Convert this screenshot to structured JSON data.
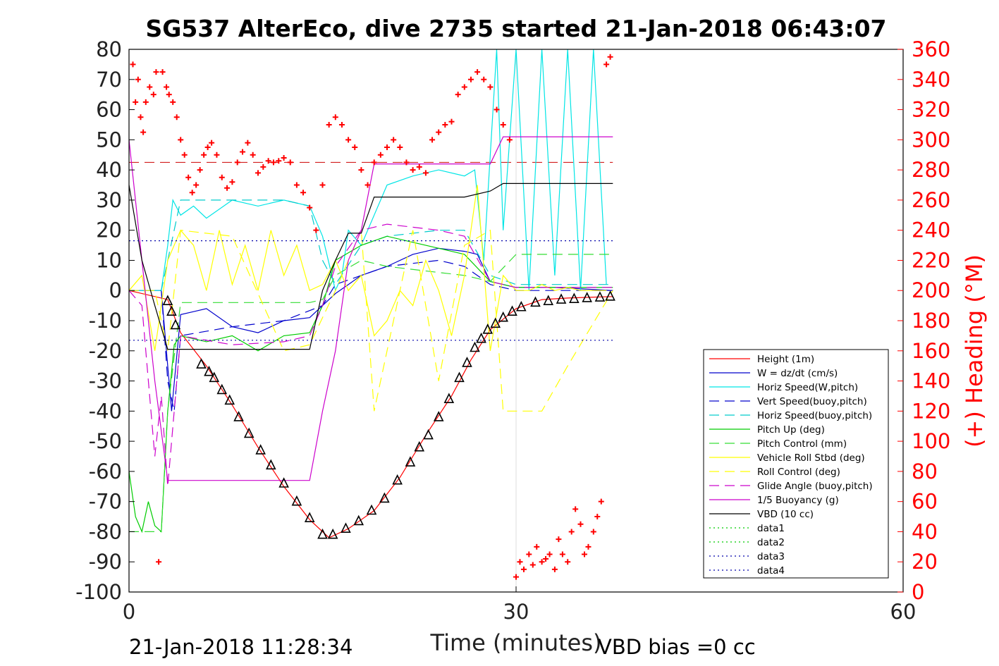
{
  "chart_data": {
    "type": "line",
    "title": "SG537 AlterEco, dive 2735 started 21-Jan-2018 06:43:07",
    "xlabel": "Time (minutes)",
    "ylabel_right": "(+) Heading (°M)",
    "xlim": [
      0,
      60
    ],
    "ylim": [
      -100,
      80
    ],
    "y2lim": [
      0,
      360
    ],
    "xticks": [
      "0",
      "30",
      "60"
    ],
    "yticks": [
      "80",
      "70",
      "60",
      "50",
      "40",
      "30",
      "20",
      "10",
      "0",
      "-10",
      "-20",
      "-30",
      "-40",
      "-50",
      "-60",
      "-70",
      "-80",
      "-90",
      "-100"
    ],
    "y2ticks": [
      "360",
      "340",
      "320",
      "300",
      "280",
      "260",
      "240",
      "220",
      "200",
      "180",
      "160",
      "140",
      "120",
      "100",
      "80",
      "60",
      "40",
      "20",
      "0"
    ],
    "footer_left": "21-Jan-2018 11:28:34",
    "footer_right": "VBD bias =0 cc",
    "grid": "x-only",
    "legend_position": "bottom-right",
    "series": [
      {
        "name": "Height (1m)",
        "color": "#ff0000",
        "style": "solid",
        "x": [
          0,
          3,
          4,
          6,
          8,
          10,
          12,
          14,
          15.5,
          17,
          19,
          21,
          23,
          25,
          26.5,
          28,
          30,
          32,
          34,
          36,
          37.5
        ],
        "y": [
          0,
          -3,
          -14,
          -25,
          -38,
          -52,
          -65,
          -76,
          -82,
          -79,
          -73,
          -62,
          -48,
          -35,
          -23,
          -13,
          -6,
          -3,
          -2.5,
          -2.2,
          -2
        ]
      },
      {
        "name": "W = dz/dt (cm/s)",
        "color": "#0000cc",
        "style": "solid",
        "x": [
          0,
          2.5,
          3,
          3.3,
          4,
          5,
          6,
          8,
          10,
          12,
          14,
          15,
          16,
          17,
          18,
          20,
          22,
          24,
          26,
          27,
          28,
          30,
          33,
          37.5
        ],
        "y": [
          0,
          0,
          -25,
          -40,
          -8,
          -7,
          -6,
          -12,
          -14,
          -10,
          -9,
          -5,
          -1,
          2,
          5,
          8,
          12,
          14,
          13,
          12,
          3,
          1,
          1,
          0
        ]
      },
      {
        "name": "Horiz Speed(W,pitch)",
        "color": "#00e5e5",
        "style": "solid",
        "x": [
          0,
          2.5,
          3,
          3.4,
          4,
          5,
          6,
          8,
          10,
          12,
          14,
          15,
          16,
          16.5,
          17,
          18,
          19,
          20,
          22,
          24,
          26,
          26.8,
          27.5,
          28.5,
          29,
          30,
          31,
          32,
          33,
          34,
          35,
          36,
          37
        ],
        "y": [
          0,
          0,
          15,
          30,
          25,
          28,
          24,
          30,
          28,
          30,
          28,
          18,
          0,
          5,
          20,
          15,
          25,
          35,
          38,
          40,
          38,
          40,
          10,
          80,
          20,
          80,
          0,
          80,
          5,
          80,
          0,
          80,
          2
        ]
      },
      {
        "name": "Vert Speed(buoy,pitch)",
        "color": "#0000cc",
        "style": "dashed",
        "x": [
          0,
          2.5,
          3,
          3.5,
          4,
          8,
          12,
          15,
          16,
          18,
          20,
          24,
          26,
          28,
          30,
          37.5
        ],
        "y": [
          0,
          0,
          -30,
          -40,
          -15,
          -12,
          -10,
          -5,
          2,
          5,
          8,
          10,
          8,
          2,
          0,
          0
        ]
      },
      {
        "name": "Horiz Speed(buoy,pitch)",
        "color": "#00cccc",
        "style": "dashed",
        "x": [
          0,
          2.5,
          3,
          4,
          8,
          12,
          14,
          15,
          16,
          18,
          20,
          24,
          26,
          28,
          30,
          37.5
        ],
        "y": [
          0,
          0,
          10,
          30,
          30,
          30,
          28,
          10,
          2,
          15,
          18,
          20,
          20,
          5,
          2,
          2
        ]
      },
      {
        "name": "Pitch Up (deg)",
        "color": "#00cc00",
        "style": "solid",
        "x": [
          0,
          0.5,
          1,
          1.5,
          2,
          2.5,
          3,
          3.5,
          4,
          6,
          8,
          10,
          12,
          14,
          15,
          16,
          18,
          20,
          22,
          24,
          26,
          28,
          30,
          37.5
        ],
        "y": [
          -60,
          -75,
          -80,
          -70,
          -78,
          -80,
          -40,
          -18,
          -15,
          -17,
          -15,
          -20,
          -15,
          -14,
          -5,
          10,
          15,
          18,
          16,
          14,
          12,
          3,
          1,
          1
        ]
      },
      {
        "name": "Pitch Control (mm)",
        "color": "#33dd33",
        "style": "dashed",
        "x": [
          0,
          2.5,
          3,
          4,
          8,
          14,
          15,
          16,
          18,
          20,
          24,
          26,
          28,
          30,
          37.5
        ],
        "y": [
          -80,
          -80,
          -40,
          -4,
          -4,
          -4,
          -3,
          5,
          10,
          8,
          6,
          5,
          3,
          12,
          12
        ]
      },
      {
        "name": "Vehicle Roll Stbd (deg)",
        "color": "#ffff00",
        "style": "solid",
        "x": [
          0,
          1,
          2,
          3,
          4,
          5,
          6,
          7,
          8,
          9,
          10,
          11,
          12,
          13,
          14,
          15,
          16,
          17,
          18,
          19,
          20,
          21,
          22,
          23,
          24,
          25,
          26,
          27,
          28,
          29,
          30,
          31,
          32,
          33,
          34,
          35,
          36,
          37
        ],
        "y": [
          0,
          5,
          -20,
          10,
          20,
          15,
          0,
          20,
          2,
          15,
          0,
          20,
          5,
          15,
          0,
          2,
          10,
          0,
          5,
          -15,
          -10,
          0,
          -5,
          10,
          0,
          -15,
          5,
          35,
          -20,
          5,
          0,
          0,
          2,
          0,
          1,
          0,
          0,
          0
        ]
      },
      {
        "name": "Roll Control (deg)",
        "color": "#ffff00",
        "style": "dashed",
        "x": [
          0,
          2,
          3,
          4,
          8,
          12,
          14,
          16,
          18,
          19,
          20,
          22,
          24,
          26,
          28,
          29,
          30,
          32,
          34,
          37.5
        ],
        "y": [
          0,
          0,
          -20,
          20,
          18,
          -20,
          -18,
          0,
          20,
          -40,
          -20,
          20,
          -30,
          15,
          20,
          -40,
          -40,
          -40,
          -25,
          0
        ]
      },
      {
        "name": "Glide Angle (buoy,pitch)",
        "color": "#cc00cc",
        "style": "dashed",
        "x": [
          0,
          1,
          2,
          2.5,
          3,
          3.5,
          4,
          8,
          12,
          14,
          15,
          16,
          18,
          20,
          24,
          26,
          28,
          30,
          37.5
        ],
        "y": [
          0,
          -5,
          -55,
          -35,
          -65,
          -40,
          -15,
          -18,
          -17,
          -15,
          -5,
          8,
          20,
          22,
          20,
          18,
          3,
          1,
          1
        ]
      },
      {
        "name": "1/5 Buoyancy (g)",
        "color": "#cc00cc",
        "style": "solid",
        "x": [
          0,
          1,
          2,
          3,
          3.5,
          14,
          15,
          16,
          17,
          18,
          19,
          26,
          28,
          29,
          30,
          37.5
        ],
        "y": [
          50,
          10,
          -30,
          -63,
          -63,
          -63,
          -40,
          -20,
          10,
          20,
          42,
          42,
          42,
          51,
          51,
          51
        ]
      },
      {
        "name": "VBD (10 cc)",
        "color": "#000000",
        "style": "solid",
        "x": [
          0,
          1,
          2,
          3,
          14,
          15,
          16,
          17,
          18,
          19,
          26,
          28,
          29,
          30,
          37.5
        ],
        "y": [
          35,
          10,
          -5,
          -19.5,
          -19.5,
          0,
          10,
          19,
          19,
          31,
          31,
          33,
          35.5,
          35.5,
          35.5
        ]
      },
      {
        "name": "data1",
        "color": "#00cc00",
        "style": "dotted",
        "x": [],
        "y": []
      },
      {
        "name": "data2",
        "color": "#00cc00",
        "style": "dotted",
        "x": [],
        "y": []
      },
      {
        "name": "data3",
        "color": "#0000aa",
        "style": "dotted",
        "x": [
          0,
          37.5
        ],
        "y": [
          16.5,
          16.5
        ]
      },
      {
        "name": "data4",
        "color": "#0000aa",
        "style": "dotted",
        "x": [
          0,
          37.5
        ],
        "y": [
          -16.5,
          -16.5
        ]
      }
    ],
    "reference_lines": [
      {
        "axis": "y2",
        "value": 285,
        "color": "#cc0000",
        "style": "dashed",
        "x": [
          0,
          37.5
        ]
      }
    ],
    "heading_points": {
      "axis": "y2",
      "color": "#ff0000",
      "marker": "+",
      "x": [
        0.3,
        0.5,
        0.7,
        0.9,
        1.1,
        1.3,
        1.6,
        1.9,
        2.1,
        2.3,
        2.6,
        2.9,
        3.1,
        3.4,
        3.7,
        4.0,
        4.3,
        4.6,
        4.9,
        5.2,
        5.5,
        5.8,
        6.1,
        6.4,
        6.8,
        7.2,
        7.6,
        8.0,
        8.4,
        8.8,
        9.2,
        9.6,
        10.0,
        10.4,
        10.8,
        11.2,
        11.6,
        12.0,
        12.5,
        13.0,
        13.5,
        14.0,
        14.5,
        15.0,
        15.5,
        16.0,
        16.5,
        17.0,
        17.5,
        18.0,
        18.5,
        19.0,
        19.5,
        20.0,
        20.5,
        21.0,
        21.5,
        22.0,
        22.5,
        23.0,
        23.5,
        24.0,
        24.5,
        25.0,
        25.5,
        26.0,
        26.5,
        27.0,
        27.5,
        28.0,
        28.5,
        29.0,
        29.5,
        30.0,
        30.3,
        30.6,
        31.0,
        31.3,
        31.6,
        32.0,
        32.3,
        32.6,
        33.0,
        33.3,
        33.6,
        34.0,
        34.3,
        34.6,
        35.0,
        35.3,
        35.6,
        36.0,
        36.3,
        36.6,
        37.0,
        37.3
      ],
      "y": [
        350,
        325,
        340,
        315,
        305,
        325,
        335,
        330,
        345,
        20,
        345,
        335,
        330,
        325,
        315,
        300,
        290,
        275,
        265,
        270,
        280,
        290,
        295,
        298,
        290,
        275,
        268,
        272,
        285,
        292,
        298,
        290,
        278,
        282,
        286,
        285,
        286,
        288,
        285,
        270,
        265,
        255,
        240,
        270,
        310,
        315,
        310,
        300,
        295,
        280,
        270,
        285,
        290,
        295,
        300,
        295,
        285,
        280,
        282,
        278,
        300,
        305,
        310,
        312,
        330,
        335,
        340,
        345,
        340,
        335,
        320,
        310,
        300,
        10,
        20,
        15,
        25,
        18,
        30,
        20,
        22,
        25,
        15,
        35,
        25,
        20,
        40,
        55,
        45,
        25,
        30,
        40,
        50,
        60,
        350,
        355
      ]
    },
    "height_markers": {
      "axis": "y",
      "color": "#000000",
      "marker": "triangle",
      "x": [
        3.0,
        3.3,
        3.6,
        5.6,
        6.2,
        6.6,
        7.2,
        7.8,
        8.5,
        9.3,
        10.2,
        11.0,
        12.0,
        13.0,
        14.0,
        15.0,
        15.8,
        16.8,
        17.8,
        18.8,
        19.8,
        20.8,
        21.8,
        22.5,
        23.2,
        24.0,
        24.8,
        25.6,
        26.2,
        26.8,
        27.3,
        27.8,
        28.4,
        29.0,
        29.7,
        30.4,
        31.5,
        32.5,
        33.5,
        34.5,
        35.5,
        36.5,
        37.3
      ],
      "y": [
        -3.5,
        -7,
        -11.5,
        -24.5,
        -27,
        -29,
        -33,
        -36.5,
        -42,
        -47.5,
        -53,
        -58,
        -64,
        -70,
        -75.5,
        -81,
        -81,
        -79,
        -76.5,
        -73,
        -69,
        -63,
        -57,
        -52,
        -48,
        -42,
        -36,
        -29,
        -24,
        -19,
        -16,
        -13,
        -11,
        -9,
        -7,
        -5.5,
        -4,
        -3.5,
        -3,
        -2.8,
        -2.5,
        -2.3,
        -2
      ]
    }
  }
}
